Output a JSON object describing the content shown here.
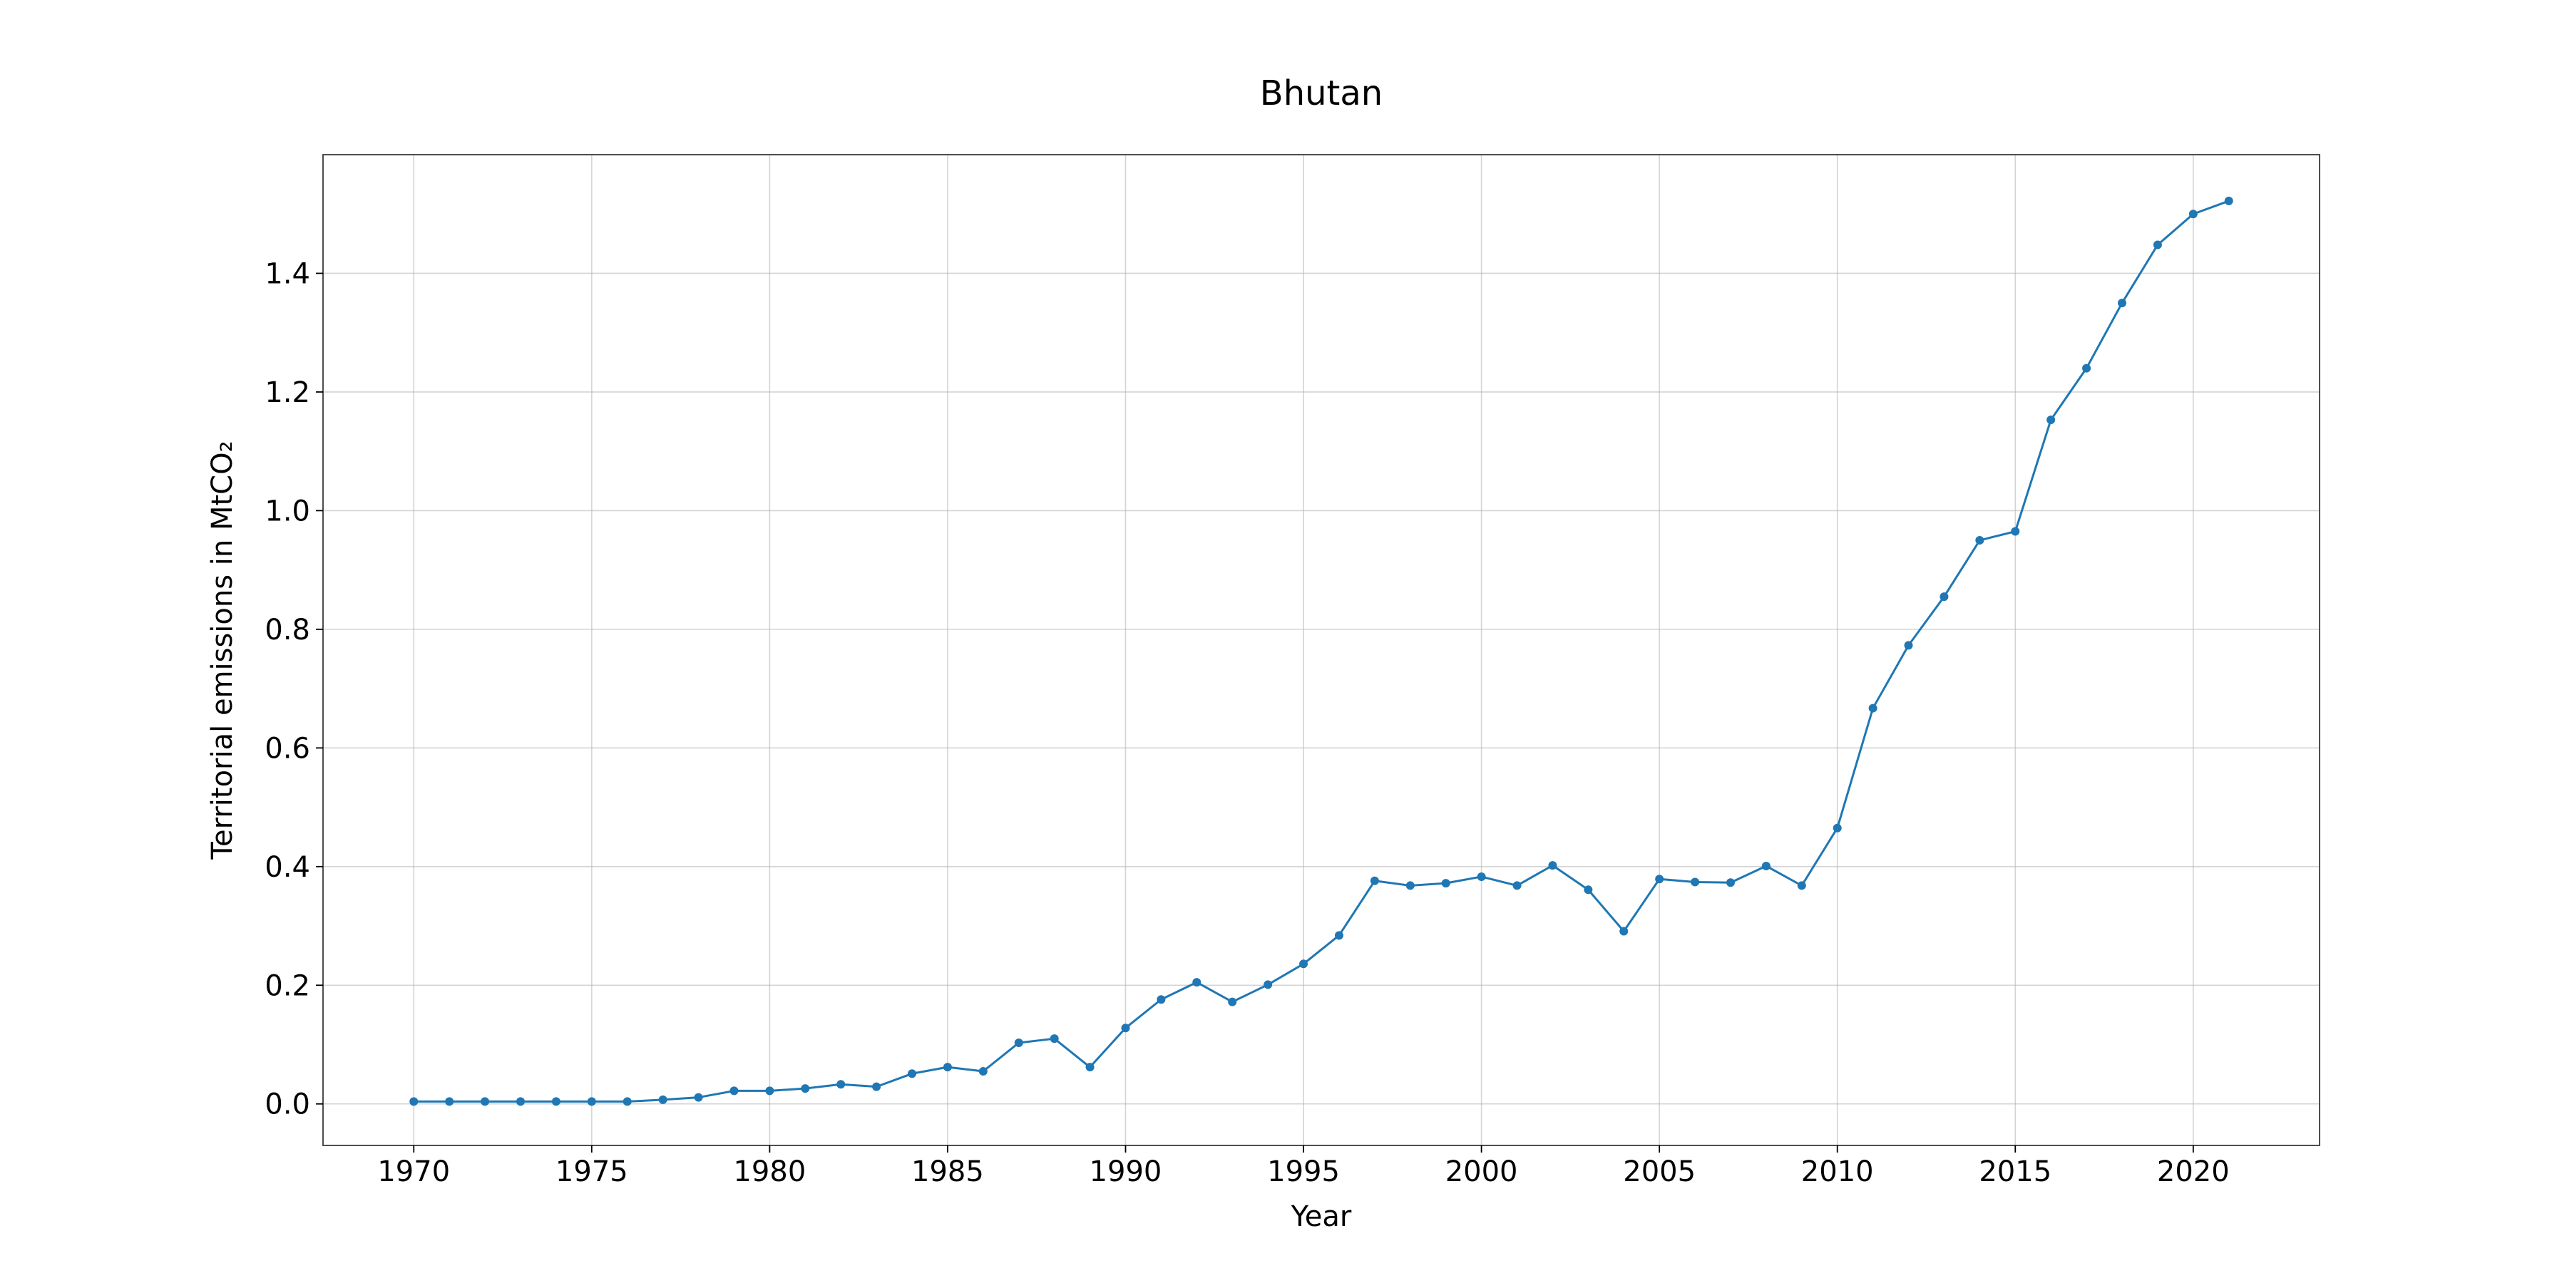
{
  "chart_data": {
    "type": "line",
    "title": "Bhutan",
    "xlabel": "Year",
    "ylabel": "Territorial emissions in MtCO₂",
    "xlim": [
      1967.45,
      2023.55
    ],
    "ylim": [
      -0.07,
      1.6
    ],
    "x_ticks": [
      1970,
      1975,
      1980,
      1985,
      1990,
      1995,
      2000,
      2005,
      2010,
      2015,
      2020
    ],
    "x_tick_labels": [
      "1970",
      "1975",
      "1980",
      "1985",
      "1990",
      "1995",
      "2000",
      "2005",
      "2010",
      "2015",
      "2020"
    ],
    "y_ticks": [
      0.0,
      0.2,
      0.4,
      0.6,
      0.8,
      1.0,
      1.2,
      1.4
    ],
    "y_tick_labels": [
      "0.0",
      "0.2",
      "0.4",
      "0.6",
      "0.8",
      "1.0",
      "1.2",
      "1.4"
    ],
    "grid": true,
    "legend": "none",
    "marker": "circle",
    "color": "#1f77b4",
    "x": [
      1970,
      1971,
      1972,
      1973,
      1974,
      1975,
      1976,
      1977,
      1978,
      1979,
      1980,
      1981,
      1982,
      1983,
      1984,
      1985,
      1986,
      1987,
      1988,
      1989,
      1990,
      1991,
      1992,
      1993,
      1994,
      1995,
      1996,
      1997,
      1998,
      1999,
      2000,
      2001,
      2002,
      2003,
      2004,
      2005,
      2006,
      2007,
      2008,
      2009,
      2010,
      2011,
      2012,
      2013,
      2014,
      2015,
      2016,
      2017,
      2018,
      2019,
      2020,
      2021
    ],
    "series": [
      {
        "values": [
          0.004,
          0.004,
          0.004,
          0.004,
          0.004,
          0.004,
          0.004,
          0.007,
          0.011,
          0.022,
          0.022,
          0.026,
          0.033,
          0.029,
          0.051,
          0.062,
          0.055,
          0.103,
          0.11,
          0.062,
          0.128,
          0.176,
          0.205,
          0.172,
          0.201,
          0.236,
          0.284,
          0.376,
          0.368,
          0.372,
          0.383,
          0.368,
          0.402,
          0.361,
          0.291,
          0.379,
          0.374,
          0.373,
          0.401,
          0.368,
          0.465,
          0.667,
          0.773,
          0.855,
          0.95,
          0.965,
          1.153,
          1.24,
          1.35,
          1.448,
          1.5,
          1.522
        ]
      }
    ]
  }
}
